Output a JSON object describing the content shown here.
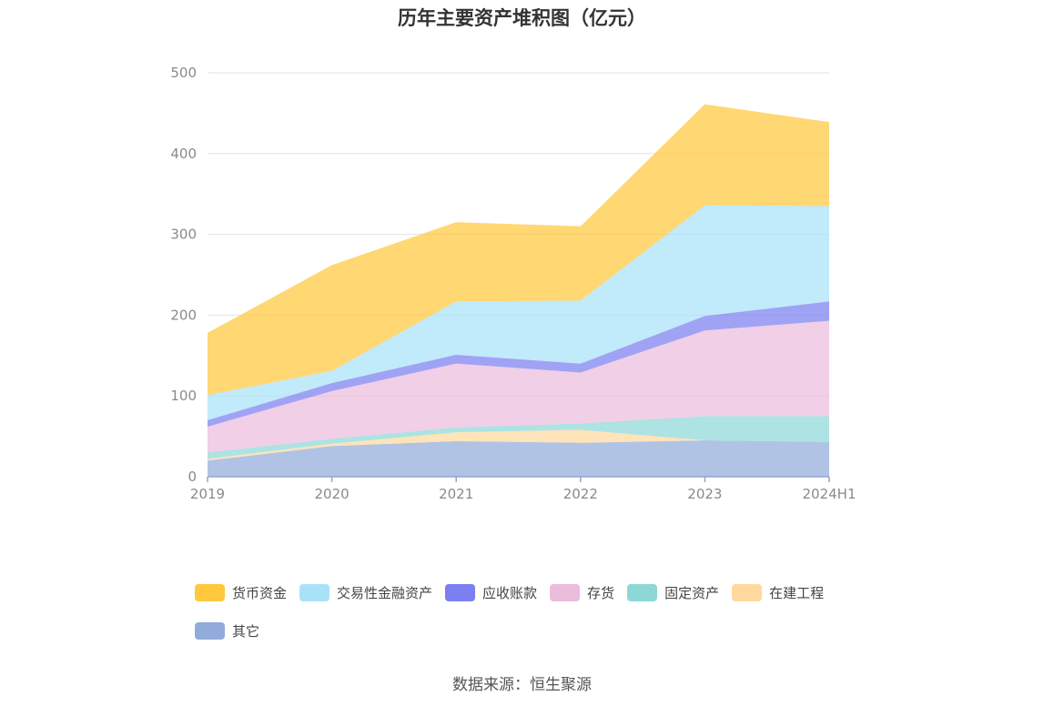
{
  "chart_data": {
    "type": "area",
    "stacked": true,
    "title": "历年主要资产堆积图（亿元）",
    "xlabel": "",
    "ylabel": "",
    "categories": [
      "2019",
      "2020",
      "2021",
      "2022",
      "2023",
      "2024H1"
    ],
    "ylim": [
      0,
      500
    ],
    "yticks": [
      "0",
      "100",
      "200",
      "300",
      "400",
      "500"
    ],
    "grid": true,
    "legend_position": "bottom",
    "series": [
      {
        "name": "其它",
        "color": "#91acdb",
        "values": [
          20,
          38,
          44,
          42,
          45,
          43
        ]
      },
      {
        "name": "在建工程",
        "color": "#ffd89e",
        "values": [
          2,
          3,
          11,
          16,
          0,
          0
        ]
      },
      {
        "name": "固定资产",
        "color": "#8dd8d7",
        "values": [
          8,
          6,
          6,
          8,
          30,
          32
        ]
      },
      {
        "name": "存货",
        "color": "#ebbcdc",
        "values": [
          32,
          59,
          79,
          63,
          106,
          118
        ]
      },
      {
        "name": "应收账款",
        "color": "#7b7ff0",
        "values": [
          8,
          10,
          11,
          11,
          18,
          24
        ]
      },
      {
        "name": "交易性金融资产",
        "color": "#a9e2f8",
        "values": [
          31,
          15,
          66,
          78,
          137,
          118
        ]
      },
      {
        "name": "货币资金",
        "color": "#ffc83d",
        "values": [
          77,
          131,
          98,
          92,
          125,
          104
        ]
      }
    ],
    "legend_order": [
      "货币资金",
      "交易性金融资产",
      "应收账款",
      "存货",
      "固定资产",
      "在建工程",
      "其它"
    ]
  },
  "source": "数据来源：恒生聚源"
}
